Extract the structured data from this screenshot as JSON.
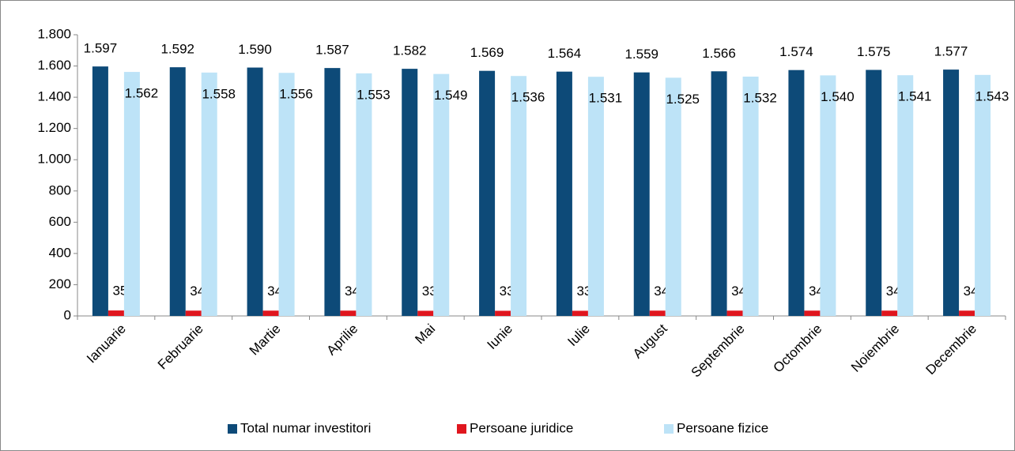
{
  "chart_data": {
    "type": "bar",
    "categories": [
      "Ianuarie",
      "Februarie",
      "Martie",
      "Aprilie",
      "Mai",
      "Iunie",
      "Iulie",
      "August",
      "Septembrie",
      "Octombrie",
      "Noiembrie",
      "Decembrie"
    ],
    "series": [
      {
        "name": "Total numar investitori",
        "color": "#0d4a78",
        "values": [
          1597,
          1592,
          1590,
          1587,
          1582,
          1569,
          1564,
          1559,
          1566,
          1574,
          1575,
          1577
        ],
        "value_labels": [
          "1.597",
          "1.592",
          "1.590",
          "1.587",
          "1.582",
          "1.569",
          "1.564",
          "1.559",
          "1.566",
          "1.574",
          "1.575",
          "1.577"
        ]
      },
      {
        "name": "Persoane juridice",
        "color": "#e0161e",
        "values": [
          35,
          34,
          34,
          34,
          33,
          33,
          33,
          34,
          34,
          34,
          34,
          34
        ]
      },
      {
        "name": "Persoane fizice",
        "color": "#bde3f7",
        "values": [
          1562,
          1558,
          1556,
          1553,
          1549,
          1536,
          1531,
          1525,
          1532,
          1540,
          1541,
          1543
        ],
        "value_labels": [
          "1.562",
          "1.558",
          "1.556",
          "1.553",
          "1.549",
          "1.536",
          "1.531",
          "1.525",
          "1.532",
          "1.540",
          "1.541",
          "1.543"
        ]
      }
    ],
    "ylim": [
      0,
      1800
    ],
    "yticks": [
      0,
      200,
      400,
      600,
      800,
      {
        "value": 1000,
        "label": "1.000"
      },
      {
        "value": 1200,
        "label": "1.200"
      },
      {
        "value": 1400,
        "label": "1.400"
      },
      {
        "value": 1600,
        "label": "1.600"
      },
      {
        "value": 1800,
        "label": "1.800"
      }
    ],
    "grid": false,
    "legend": "bottom"
  }
}
